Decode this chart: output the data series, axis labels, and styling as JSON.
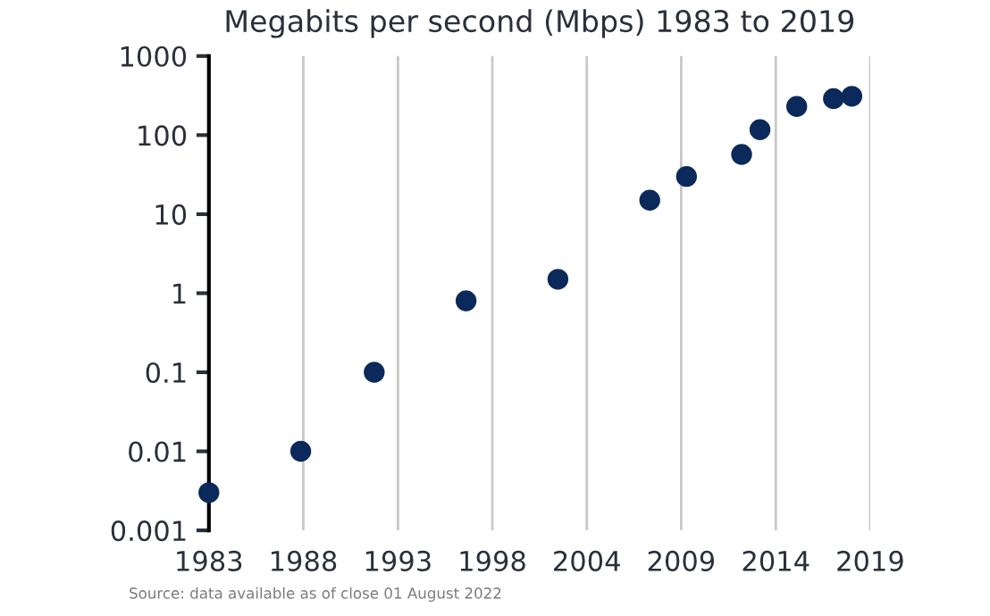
{
  "chart_data": {
    "type": "scatter",
    "title": "Megabits per second (Mbps) 1983 to 2019",
    "x": [
      1983,
      1988,
      1992,
      1997,
      2002,
      2007,
      2009,
      2012,
      2013,
      2015,
      2017,
      2018
    ],
    "series": [
      {
        "color": "#0b2a5b",
        "values": [
          0.003,
          0.01,
          0.1,
          0.8,
          1.5,
          15,
          30,
          57,
          117,
          230,
          290,
          310
        ]
      }
    ],
    "log": "y",
    "xlim": [
      1983,
      2019
    ],
    "xticks": [
      1983,
      {
        "value": 1988.14,
        "label": "1988"
      },
      {
        "value": 1993.29,
        "label": "1993"
      },
      {
        "value": 1998.43,
        "label": "1998"
      },
      {
        "value": 2003.57,
        "label": "2004"
      },
      {
        "value": 2008.71,
        "label": "2009"
      },
      {
        "value": 2013.86,
        "label": "2014"
      },
      2019
    ],
    "ylim": [
      0.001,
      1000
    ],
    "yticks": [
      0.001,
      0.01,
      0.1,
      1,
      10,
      100,
      1000
    ],
    "grid": "x",
    "marker": "circle",
    "annotations": [
      "Source: data available as of close 01 August 2022"
    ]
  }
}
